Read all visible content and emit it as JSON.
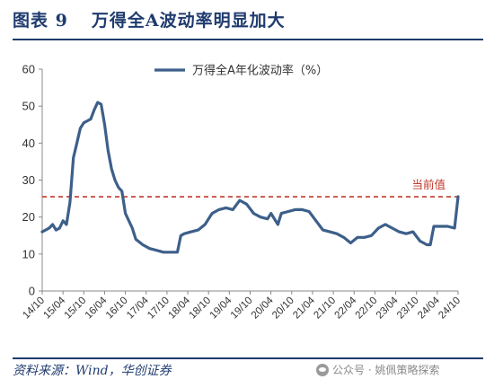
{
  "figure": {
    "label": "图表 9",
    "title": "万得全A波动率明显加大",
    "source": "资料来源：Wind，华创证券",
    "watermark": "公众号 · 姚佩策略探索"
  },
  "colors": {
    "line": "#3d5f8a",
    "reference": "#c0392b",
    "text": "#1f3b6e",
    "axis": "#888888"
  },
  "chart_data": {
    "type": "line",
    "title": "",
    "xlabel": "",
    "ylabel": "",
    "ylim": [
      0,
      60
    ],
    "yticks": [
      0,
      10,
      20,
      30,
      40,
      50,
      60
    ],
    "xlim": [
      "2014-10",
      "2024-10"
    ],
    "xticks": [
      "14/10",
      "15/04",
      "15/10",
      "16/04",
      "16/10",
      "17/04",
      "17/10",
      "18/04",
      "18/10",
      "19/04",
      "19/10",
      "20/04",
      "20/10",
      "21/04",
      "21/10",
      "22/04",
      "22/10",
      "23/04",
      "23/10",
      "24/04",
      "24/10"
    ],
    "grid": false,
    "legend": {
      "position": "top-center"
    },
    "series": [
      {
        "name": "万得全A年化波动率（%）",
        "x": [
          "2014-10",
          "2014-12",
          "2015-01",
          "2015-02",
          "2015-03",
          "2015-04",
          "2015-05",
          "2015-06",
          "2015-07",
          "2015-08",
          "2015-09",
          "2015-10",
          "2015-11",
          "2015-12",
          "2016-01",
          "2016-02",
          "2016-03",
          "2016-04",
          "2016-05",
          "2016-06",
          "2016-07",
          "2016-08",
          "2016-09",
          "2016-10",
          "2016-12",
          "2017-01",
          "2017-03",
          "2017-05",
          "2017-07",
          "2017-09",
          "2017-11",
          "2018-01",
          "2018-02",
          "2018-03",
          "2018-05",
          "2018-07",
          "2018-09",
          "2018-11",
          "2019-01",
          "2019-03",
          "2019-05",
          "2019-07",
          "2019-09",
          "2019-11",
          "2020-01",
          "2020-03",
          "2020-04",
          "2020-06",
          "2020-07",
          "2020-09",
          "2020-11",
          "2021-01",
          "2021-03",
          "2021-05",
          "2021-07",
          "2021-09",
          "2021-11",
          "2022-01",
          "2022-03",
          "2022-05",
          "2022-07",
          "2022-09",
          "2022-11",
          "2023-01",
          "2023-03",
          "2023-05",
          "2023-07",
          "2023-09",
          "2023-11",
          "2024-01",
          "2024-02",
          "2024-03",
          "2024-05",
          "2024-07",
          "2024-09",
          "2024-10"
        ],
        "values": [
          16,
          17,
          18,
          16.5,
          17,
          19,
          18,
          24,
          36,
          40,
          44,
          45.5,
          46,
          46.5,
          49,
          51,
          50.5,
          45,
          38,
          33,
          30,
          28,
          27,
          21,
          17,
          14,
          12.5,
          11.5,
          11,
          10.5,
          10.5,
          10.5,
          15,
          15.5,
          16,
          16.5,
          18,
          21,
          22,
          22.5,
          22,
          24.5,
          23.5,
          21,
          20,
          19.5,
          21,
          18,
          21,
          21.5,
          22,
          22,
          21.5,
          19,
          16.5,
          16,
          15.5,
          14.5,
          13,
          14.5,
          14.5,
          15,
          17,
          18,
          17,
          16,
          15.5,
          16,
          13.5,
          12.5,
          12.5,
          17.5,
          17.5,
          17.5,
          17,
          25.5
        ]
      }
    ],
    "reference_line": {
      "value": 25.5,
      "label": "当前值"
    }
  }
}
